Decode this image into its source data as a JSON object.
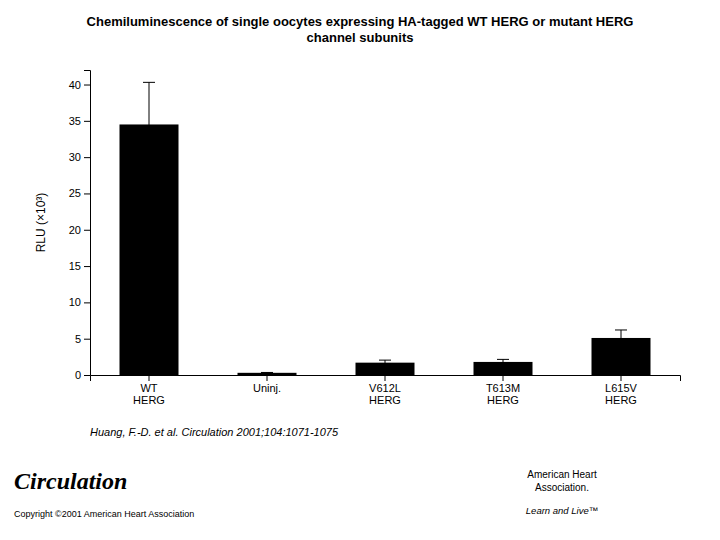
{
  "chart_data": {
    "type": "bar",
    "title": "Chemiluminescence of single oocytes expressing HA-tagged WT HERG or mutant HERG\nchannel subunits",
    "categories": [
      "WT\nHERG",
      "Uninj.",
      "V612L\nHERG",
      "T613M\nHERG",
      "L615V\nHERG"
    ],
    "values": [
      34.5,
      0.3,
      1.7,
      1.8,
      5.1
    ],
    "errors": [
      5.8,
      0.05,
      0.35,
      0.35,
      1.1
    ],
    "color": "#000000",
    "ylabel": "RLU (×10³)",
    "ylim": [
      0,
      42
    ],
    "yticks": [
      0,
      5,
      10,
      15,
      20,
      25,
      30,
      35,
      40
    ],
    "grid": false,
    "annotations": [
      "Huang, F.-D. et al. Circulation 2001;104:1071-1075",
      "Circulation",
      "Copyright ©2001 American Heart Association",
      "American Heart",
      "Association.",
      "Learn and Live™"
    ]
  }
}
